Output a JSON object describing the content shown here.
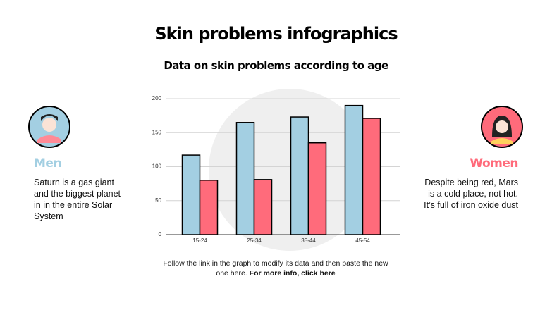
{
  "chart_data": {
    "type": "bar",
    "title": "Skin problems infographics",
    "subtitle": "Data on skin problems according to age",
    "categories": [
      "15-24",
      "25-34",
      "35-44",
      "45-54"
    ],
    "series": [
      {
        "name": "Men",
        "color": "#a3cfe2",
        "values": [
          117,
          165,
          173,
          190
        ]
      },
      {
        "name": "Women",
        "color": "#ff6b7b",
        "values": [
          80,
          81,
          135,
          171
        ]
      }
    ],
    "ylim": [
      0,
      200
    ],
    "yticks": [
      0,
      50,
      100,
      150,
      200
    ],
    "grid": true
  },
  "men_text": "Saturn is a gas giant and the biggest planet in in the entire Solar System",
  "women_text": "Despite being red, Mars is a cold place, not hot. It’s full of iron oxide dust",
  "footer": {
    "text": "Follow the link in the graph to modify its data and then paste the new one here.",
    "link": "For more info, click here"
  }
}
